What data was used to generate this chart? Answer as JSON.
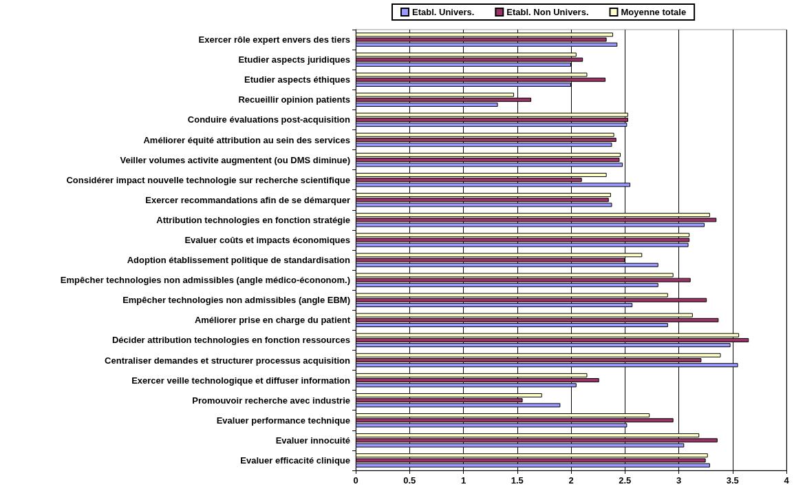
{
  "chart_data": {
    "type": "bar",
    "orientation": "horizontal",
    "categories": [
      "Exercer rôle expert envers des tiers",
      "Etudier aspects juridiques",
      "Etudier aspects éthiques",
      "Recueillir opinion patients",
      "Conduire évaluations post-acquisition",
      "Améliorer équité attribution au sein des services",
      "Veiller volumes activite augmentent (ou DMS diminue)",
      "Considérer impact nouvelle technologie sur recherche scientifique",
      "Exercer recommandations afin de se démarquer",
      "Attribution technologies en fonction stratégie",
      "Evaluer coûts et impacts économiques",
      "Adoption établissement politique de standardisation",
      "Empêcher technologies non admissibles (angle médico-écononom.)",
      "Empêcher technologies non admissibles (angle EBM)",
      "Améliorer prise en charge du patient",
      "Décider attribution technologies en fonction ressources",
      "Centraliser demandes et structurer processus acquisition",
      "Exercer veille technologique et diffuser information",
      "Promouvoir recherche avec industrie",
      "Evaluer performance technique",
      "Evaluer innocuité",
      "Evaluer efficacité clinique"
    ],
    "series": [
      {
        "name": "Etabl. Univers.",
        "color": "#9999ff",
        "values": [
          2.43,
          2.0,
          2.0,
          1.32,
          2.52,
          2.38,
          2.48,
          2.55,
          2.38,
          3.24,
          3.09,
          2.81,
          2.81,
          2.57,
          2.9,
          3.48,
          3.55,
          2.05,
          1.9,
          2.52,
          3.05,
          3.29
        ]
      },
      {
        "name": "Etabl. Non Univers.",
        "color": "#993366",
        "values": [
          2.33,
          2.11,
          2.32,
          1.63,
          2.53,
          2.42,
          2.45,
          2.1,
          2.35,
          3.35,
          3.1,
          2.5,
          3.11,
          3.26,
          3.37,
          3.65,
          3.21,
          2.26,
          1.55,
          2.95,
          3.36,
          3.25
        ]
      },
      {
        "name": "Moyenne totale",
        "color": "#ffffcc",
        "values": [
          2.39,
          2.05,
          2.15,
          1.47,
          2.53,
          2.4,
          2.46,
          2.33,
          2.37,
          3.29,
          3.1,
          2.66,
          2.95,
          2.9,
          3.13,
          3.56,
          3.39,
          2.15,
          1.73,
          2.73,
          3.19,
          3.27
        ]
      }
    ],
    "xlim": [
      0,
      4
    ],
    "xticks": [
      0,
      0.5,
      1,
      1.5,
      2,
      2.5,
      3,
      3.5,
      4
    ],
    "grid": "x",
    "legend": "top"
  }
}
